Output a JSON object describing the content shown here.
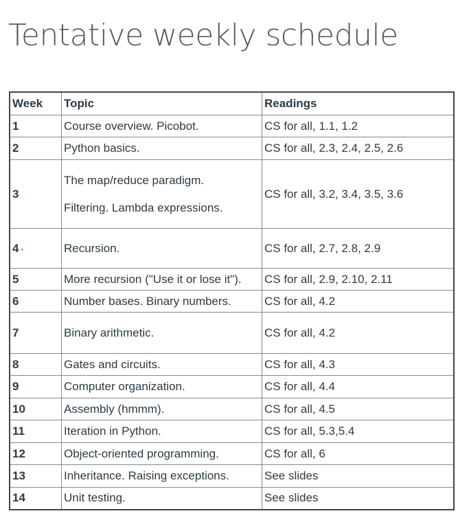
{
  "page": {
    "title": "Tentative weekly schedule"
  },
  "table": {
    "headers": [
      "Week",
      "Topic",
      "Readings"
    ],
    "rows": [
      {
        "week": "1",
        "topic": [
          "Course overview. Picobot."
        ],
        "readings": "CS for all, 1.1, 1.2"
      },
      {
        "week": "2",
        "topic": [
          "Python basics."
        ],
        "readings": "CS for all, 2.3, 2.4, 2.5, 2.6"
      },
      {
        "week": "3",
        "topic": [
          "The map/reduce paradigm.",
          "Filtering. Lambda expressions."
        ],
        "readings": "CS for all, 3.2, 3.4, 3.5, 3.6"
      },
      {
        "week": "4",
        "mark": "·",
        "topic": [
          "Recursion."
        ],
        "readings": "CS for all, 2.7, 2.8, 2.9"
      },
      {
        "week": "5",
        "topic": [
          "More recursion (\"Use it or lose it\")."
        ],
        "readings": "CS for all, 2.9, 2.10, 2.11"
      },
      {
        "week": "6",
        "topic": [
          "Number bases. Binary numbers."
        ],
        "readings": "CS for all, 4.2"
      },
      {
        "week": "7",
        "topic": [
          "Binary arithmetic."
        ],
        "readings": "CS for all, 4.2"
      },
      {
        "week": "8",
        "topic": [
          "Gates and circuits."
        ],
        "readings": "CS for all, 4.3"
      },
      {
        "week": "9",
        "topic": [
          "Computer organization."
        ],
        "readings": "CS for all, 4.4"
      },
      {
        "week": "10",
        "topic": [
          "Assembly (hmmm)."
        ],
        "readings": "CS for all, 4.5"
      },
      {
        "week": "11",
        "topic": [
          "Iteration in Python."
        ],
        "readings": "CS for all, 5.3,5.4"
      },
      {
        "week": "12",
        "topic": [
          "Object-oriented programming."
        ],
        "readings": "CS for all, 6"
      },
      {
        "week": "13",
        "topic": [
          "Inheritance. Raising exceptions."
        ],
        "readings": "See slides"
      },
      {
        "week": "14",
        "topic": [
          "Unit testing."
        ],
        "readings": "See slides"
      }
    ]
  }
}
